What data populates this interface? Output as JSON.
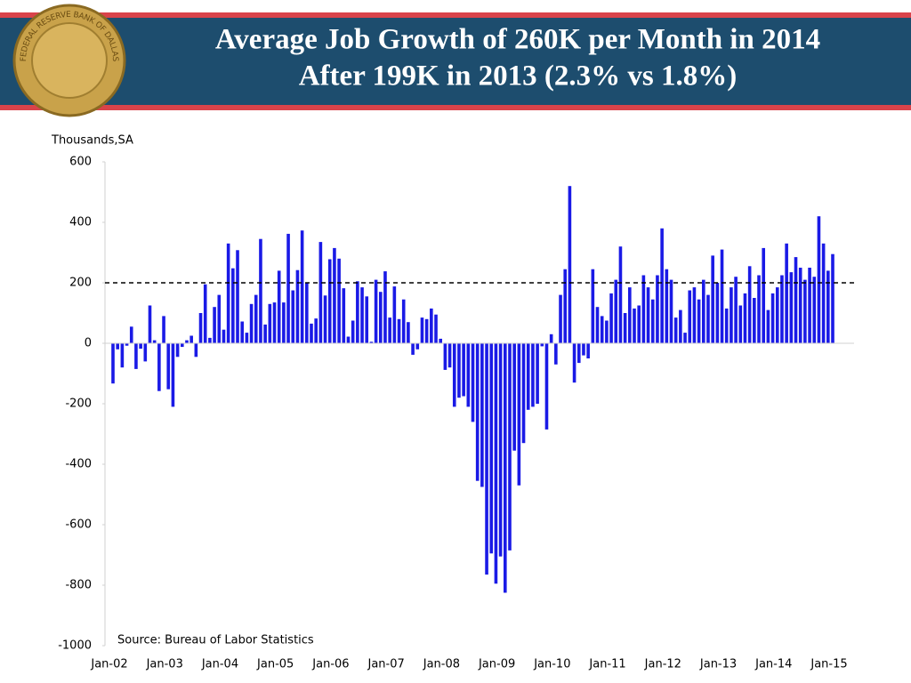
{
  "chart_data": {
    "type": "bar",
    "title": "Average Job Growth of 260K per Month in 2014",
    "subtitle": "After 199K in 2013 (2.3% vs 1.8%)",
    "seal": "FEDERAL RESERVE BANK OF DALLAS",
    "y_label": "Thousands,SA",
    "source": "Source: Bureau of Labor Statistics",
    "categories": [
      "Jan-02",
      null,
      null,
      null,
      null,
      null,
      null,
      null,
      null,
      null,
      null,
      null,
      "Jan-03",
      null,
      null,
      null,
      null,
      null,
      null,
      null,
      null,
      null,
      null,
      null,
      "Jan-04",
      null,
      null,
      null,
      null,
      null,
      null,
      null,
      null,
      null,
      null,
      null,
      "Jan-05",
      null,
      null,
      null,
      null,
      null,
      null,
      null,
      null,
      null,
      null,
      null,
      "Jan-06",
      null,
      null,
      null,
      null,
      null,
      null,
      null,
      null,
      null,
      null,
      null,
      "Jan-07",
      null,
      null,
      null,
      null,
      null,
      null,
      null,
      null,
      null,
      null,
      null,
      "Jan-08",
      null,
      null,
      null,
      null,
      null,
      null,
      null,
      null,
      null,
      null,
      null,
      "Jan-09",
      null,
      null,
      null,
      null,
      null,
      null,
      null,
      null,
      null,
      null,
      null,
      "Jan-10",
      null,
      null,
      null,
      null,
      null,
      null,
      null,
      null,
      null,
      null,
      null,
      "Jan-11",
      null,
      null,
      null,
      null,
      null,
      null,
      null,
      null,
      null,
      null,
      null,
      "Jan-12",
      null,
      null,
      null,
      null,
      null,
      null,
      null,
      null,
      null,
      null,
      null,
      "Jan-13",
      null,
      null,
      null,
      null,
      null,
      null,
      null,
      null,
      null,
      null,
      null,
      "Jan-14",
      null,
      null,
      null,
      null,
      null,
      null,
      null,
      null,
      null,
      null,
      null,
      "Jan-15"
    ],
    "values": [
      -133,
      -20,
      -80,
      -8,
      55,
      -85,
      -18,
      -60,
      125,
      10,
      -158,
      90,
      -152,
      -210,
      -45,
      -12,
      10,
      25,
      -45,
      100,
      195,
      18,
      120,
      160,
      45,
      330,
      248,
      308,
      72,
      35,
      130,
      160,
      345,
      62,
      130,
      135,
      240,
      135,
      362,
      175,
      242,
      373,
      200,
      65,
      82,
      335,
      158,
      278,
      315,
      280,
      182,
      22,
      75,
      205,
      185,
      155,
      5,
      210,
      170,
      238,
      85,
      188,
      80,
      145,
      70,
      -38,
      -20,
      85,
      80,
      115,
      95,
      15,
      -88,
      -80,
      -210,
      -180,
      -175,
      -210,
      -260,
      -455,
      -475,
      -765,
      -695,
      -795,
      -705,
      -825,
      -685,
      -355,
      -470,
      -330,
      -220,
      -210,
      -200,
      -10,
      -285,
      30,
      -70,
      160,
      245,
      520,
      -130,
      -65,
      -40,
      -50,
      245,
      120,
      90,
      75,
      165,
      210,
      320,
      100,
      185,
      115,
      125,
      225,
      185,
      145,
      225,
      380,
      245,
      210,
      85,
      110,
      35,
      175,
      185,
      145,
      210,
      160,
      290,
      200,
      310,
      115,
      185,
      220,
      125,
      165,
      255,
      150,
      225,
      315,
      110,
      165,
      185,
      225,
      330,
      235,
      285,
      250,
      210,
      250,
      220,
      420,
      330,
      240,
      295
    ],
    "color": "#1a1ae6",
    "reference_line": 200,
    "ylim": [
      -1000,
      600
    ],
    "yticks": [
      -1000,
      -800,
      -600,
      -400,
      -200,
      0,
      200,
      400,
      600
    ]
  }
}
